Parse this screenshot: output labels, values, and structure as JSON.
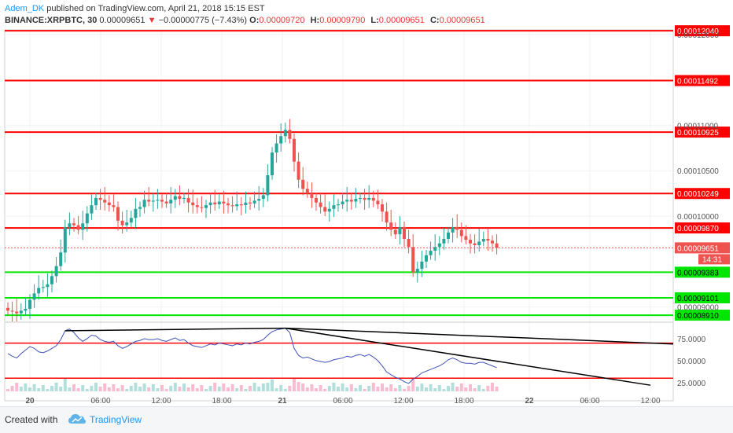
{
  "header": {
    "author": "Adem_DK",
    "published": "published on TradingView.com, April 21, 2018 15:15 EST",
    "symbol": "BINANCE:XRPBTC, 30",
    "last": "0.00009651",
    "change_arrow": "▼",
    "change": "−0.00000775 (−7.43%)",
    "o_label": "O:",
    "o": "0.00009720",
    "h_label": "H:",
    "h": "0.00009790",
    "l_label": "L:",
    "l": "0.00009651",
    "c_label": "C:",
    "c": "0.00009651"
  },
  "footer": {
    "created_with": "Created with",
    "brand": "TradingView",
    "logo_icon": "tradingview-cloud-icon"
  },
  "colors": {
    "up": "#26a69a",
    "down": "#ef5350",
    "resistance": "#ff0000",
    "support": "#00e600",
    "rsi_line": "#3f51b5",
    "trendline": "#000000"
  },
  "chart_data": [
    {
      "type": "candlestick",
      "timeframe": "30",
      "y_scale": {
        "min": 8.85e-05,
        "max": 0.0001205
      },
      "x_ticks": [
        "20",
        "06:00",
        "12:00",
        "18:00",
        "21",
        "06:00",
        "12:00",
        "18:00",
        "22",
        "06:00",
        "12:00"
      ],
      "y_tick_labels": [
        "0.00012000",
        "0.00011000",
        "0.00010500",
        "0.00010000",
        "0.00009000"
      ],
      "horizontal_levels": [
        {
          "value": 0.0001204,
          "label": "0.00012040",
          "kind": "resistance"
        },
        {
          "value": 0.00011492,
          "label": "0.00011492",
          "kind": "resistance"
        },
        {
          "value": 0.00010925,
          "label": "0.00010925",
          "kind": "resistance"
        },
        {
          "value": 0.00010249,
          "label": "0.00010249",
          "kind": "resistance"
        },
        {
          "value": 9.87e-05,
          "label": "0.00009870",
          "kind": "resistance"
        },
        {
          "value": 9.383e-05,
          "label": "0.00009383",
          "kind": "support"
        },
        {
          "value": 9.101e-05,
          "label": "0.00009101",
          "kind": "support"
        },
        {
          "value": 8.91e-05,
          "label": "0.00008910",
          "kind": "support"
        }
      ],
      "last_price": {
        "value": 9.651e-05,
        "label": "0.00009651",
        "countdown": "14:31"
      },
      "closes": [
        8.96e-05,
        8.95e-05,
        8.93e-05,
        8.96e-05,
        8.98e-05,
        9.08e-05,
        9.15e-05,
        9.21e-05,
        9.22e-05,
        9.25e-05,
        9.34e-05,
        9.45e-05,
        9.6e-05,
        9.88e-05,
        9.92e-05,
        9.9e-05,
        9.85e-05,
        9.92e-05,
        0.0001003,
        0.0001012,
        0.000102,
        0.0001018,
        0.0001015,
        0.0001012,
        0.000101,
        9.95e-05,
        9.9e-05,
        9.93e-05,
        9.98e-05,
        0.0001008,
        0.000101,
        0.0001018,
        0.0001016,
        0.0001017,
        0.0001018,
        0.0001016,
        0.0001014,
        0.0001018,
        0.0001022,
        0.0001019,
        0.000102,
        0.0001015,
        0.0001012,
        0.000101,
        0.0001009,
        0.0001012,
        0.0001015,
        0.0001013,
        0.0001016,
        0.0001014,
        0.0001012,
        0.0001011,
        0.0001013,
        0.0001012,
        0.0001015,
        0.0001014,
        0.0001017,
        0.0001019,
        0.0001023,
        0.0001045,
        0.000107,
        0.000108,
        0.0001088,
        0.0001095,
        0.0001085,
        0.000106,
        0.000104,
        0.000103,
        0.0001025,
        0.000102,
        0.0001015,
        0.000101,
        0.0001005,
        0.0001008,
        0.0001012,
        0.0001013,
        0.0001016,
        0.0001018,
        0.0001016,
        0.0001019,
        0.000102,
        0.0001018,
        0.000102,
        0.0001017,
        0.0001013,
        0.0001005,
        9.93e-05,
        9.85e-05,
        9.8e-05,
        9.88e-05,
        9.75e-05,
        9.66e-05,
        9.38e-05,
        9.42e-05,
        9.5e-05,
        9.57e-05,
        9.62e-05,
        9.66e-05,
        9.7e-05,
        9.75e-05,
        9.82e-05,
        9.88e-05,
        9.85e-05,
        9.78e-05,
        9.74e-05,
        9.7e-05,
        9.68e-05,
        9.72e-05,
        9.75e-05,
        9.73e-05,
        9.7e-05,
        9.65e-05
      ],
      "rsi": {
        "y_tick_labels": [
          "75.0000",
          "50.0000",
          "25.0000"
        ],
        "levels": [
          70,
          30
        ],
        "values": [
          58,
          55,
          53,
          58,
          62,
          66,
          64,
          60,
          59,
          61,
          64,
          67,
          74,
          84,
          86,
          82,
          76,
          72,
          75,
          79,
          78,
          74,
          72,
          71,
          72,
          67,
          64,
          66,
          69,
          72,
          73,
          75,
          74,
          74,
          75,
          73,
          72,
          74,
          76,
          73,
          74,
          70,
          67,
          66,
          65,
          67,
          69,
          68,
          70,
          69,
          68,
          67,
          69,
          68,
          70,
          69,
          71,
          72,
          74,
          79,
          83,
          85,
          86,
          87,
          82,
          64,
          56,
          53,
          54,
          52,
          50,
          49,
          48,
          49,
          51,
          52,
          53,
          55,
          54,
          56,
          57,
          55,
          57,
          54,
          50,
          44,
          37,
          34,
          31,
          29,
          26,
          24,
          29,
          32,
          36,
          38,
          40,
          42,
          44,
          47,
          51,
          53,
          51,
          48,
          47,
          47,
          46,
          48,
          48,
          46,
          44,
          42
        ]
      }
    }
  ]
}
